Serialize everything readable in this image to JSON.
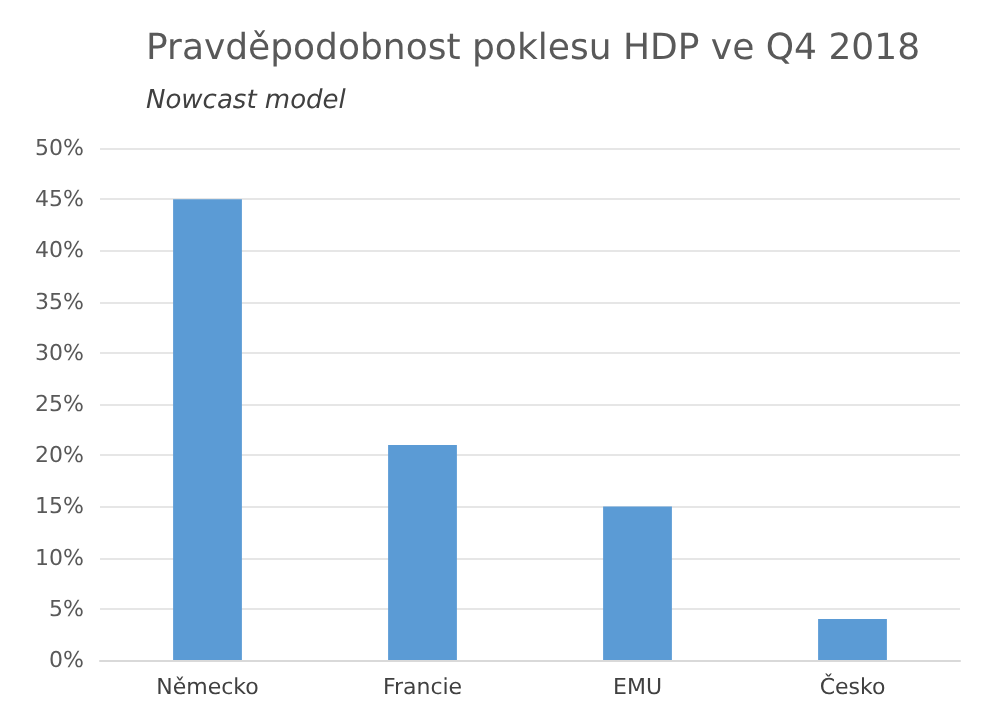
{
  "chart_data": {
    "type": "bar",
    "title": "Pravděpodobnost poklesu HDP ve Q4 2018",
    "subtitle": "Nowcast model",
    "categories": [
      "Německo",
      "Francie",
      "EMU",
      "Česko"
    ],
    "values": [
      45,
      21,
      15,
      4
    ],
    "color": "#5b9bd5",
    "ylim": [
      0,
      50
    ],
    "yticks": [
      {
        "value": 0,
        "label": "0%"
      },
      {
        "value": 5,
        "label": "5%"
      },
      {
        "value": 10,
        "label": "10%"
      },
      {
        "value": 15,
        "label": "15%"
      },
      {
        "value": 20,
        "label": "20%"
      },
      {
        "value": 25,
        "label": "25%"
      },
      {
        "value": 30,
        "label": "30%"
      },
      {
        "value": 35,
        "label": "35%"
      },
      {
        "value": 40,
        "label": "40%"
      },
      {
        "value": 45,
        "label": "45%"
      },
      {
        "value": 50,
        "label": "50%"
      }
    ],
    "grid": "y"
  }
}
